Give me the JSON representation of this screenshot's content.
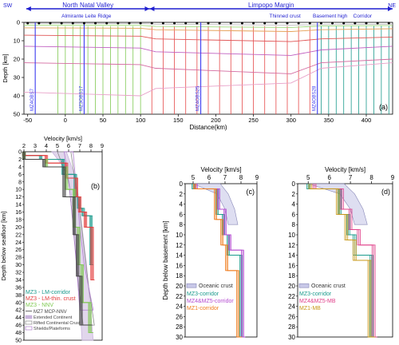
{
  "chart_data": [
    {
      "id": "a",
      "type": "line",
      "panel_label": "(a)",
      "regions": [
        {
          "label": "North Natal Valley",
          "from": -52,
          "to": 112,
          "color": "#1f1fd0"
        },
        {
          "label": "Limpopo Margin",
          "from": 112,
          "to": 435,
          "color": "#1f1fd0"
        }
      ],
      "end_labels": {
        "left": "SW",
        "right": "NE"
      },
      "features": [
        {
          "label": "Almirante Leite Ridge",
          "x": 28
        },
        {
          "label": "Thinned crust",
          "x": 292
        },
        {
          "label": "Basement high",
          "x": 352
        },
        {
          "label": "Corridor",
          "x": 395
        }
      ],
      "obs": [
        {
          "label": "MZ4OBS7",
          "x": -40
        },
        {
          "label": "MZ3OBS17",
          "x": 25
        },
        {
          "label": "MZ4OBS25",
          "x": 180
        },
        {
          "label": "MZ4OBS28",
          "x": 335
        }
      ],
      "xlabel": "Distance(km)",
      "ylabel": "Depth [km]",
      "xlim": [
        -55,
        435
      ],
      "ylim": [
        0,
        50
      ],
      "xticks": [
        -50,
        0,
        50,
        100,
        150,
        200,
        250,
        300,
        350,
        400
      ],
      "yticks": [
        0,
        10,
        20,
        30,
        40,
        50
      ],
      "profiles": [
        {
          "name": "green",
          "color": "#7ec850",
          "x": [
            -10,
            0,
            10,
            20,
            30,
            40,
            50,
            60,
            70,
            80,
            90,
            100
          ]
        },
        {
          "name": "red",
          "color": "#e64a4a",
          "x": [
            115,
            130,
            145,
            160,
            175,
            190,
            205,
            220,
            235,
            250,
            265,
            280,
            295,
            310,
            325
          ]
        },
        {
          "name": "teal",
          "color": "#1a9a8c",
          "x": [
            340,
            350,
            360,
            370,
            380,
            390,
            400,
            410,
            420,
            430
          ]
        }
      ],
      "layers": [
        {
          "color": "#bcbcbc",
          "x": [
            -55,
            100,
            120,
            300,
            340,
            435
          ],
          "y": [
            0.5,
            0.6,
            1.0,
            1.5,
            1.2,
            1.0
          ]
        },
        {
          "color": "#9edb7c",
          "x": [
            -55,
            100,
            120,
            300,
            340,
            435
          ],
          "y": [
            1.5,
            1.6,
            2.2,
            2.8,
            2.0,
            1.8
          ]
        },
        {
          "color": "#e6a25a",
          "x": [
            -55,
            100,
            120,
            300,
            340,
            435
          ],
          "y": [
            3.0,
            3.2,
            4.0,
            5.0,
            4.0,
            3.5
          ]
        },
        {
          "color": "#e05555",
          "x": [
            -55,
            100,
            120,
            300,
            340,
            435
          ],
          "y": [
            7.0,
            7.5,
            9.0,
            10.5,
            9.0,
            8.0
          ]
        },
        {
          "color": "#c060c0",
          "x": [
            -55,
            100,
            120,
            300,
            340,
            435
          ],
          "y": [
            13.0,
            14.0,
            16.0,
            18.0,
            15.0,
            13.0
          ]
        },
        {
          "color": "#d46aa0",
          "x": [
            -55,
            100,
            120,
            300,
            340,
            435
          ],
          "y": [
            22.0,
            23.0,
            25.0,
            28.0,
            22.0,
            20.0
          ]
        },
        {
          "color": "#e8a0c8",
          "x": [
            -55,
            100,
            120,
            300,
            340,
            435
          ],
          "y": [
            38.0,
            40.0,
            36.0,
            33.0,
            25.0,
            22.0
          ]
        }
      ],
      "stations": [
        -50,
        -35,
        -20,
        -5,
        10,
        25,
        40,
        55,
        70,
        85,
        100,
        115,
        130,
        145,
        160,
        175,
        190,
        205,
        220,
        235,
        250,
        265,
        280,
        295,
        310,
        325,
        340,
        355,
        370,
        385,
        400,
        415,
        430
      ]
    },
    {
      "id": "b",
      "type": "line",
      "panel_label": "(b)",
      "xlabel": "Velocity [km/s]",
      "ylabel": "Depth below seafloor [km]",
      "xlim": [
        2,
        9
      ],
      "ylim": [
        0,
        50
      ],
      "xticks": [
        2,
        3,
        4,
        5,
        6,
        7,
        8,
        9
      ],
      "yticks": [
        0,
        2,
        4,
        6,
        8,
        10,
        12,
        14,
        16,
        18,
        20,
        22,
        24,
        26,
        28,
        30,
        32,
        34,
        36,
        38,
        40,
        42,
        44,
        46,
        48,
        50
      ],
      "bands": [
        {
          "name": "Extended Continent",
          "color": "#c8b4dc",
          "fill": true,
          "v_lo": [
            4.5,
            5.8,
            6.2,
            6.5,
            6.8,
            7.0,
            7.2
          ],
          "v_hi": [
            5.8,
            6.4,
            6.8,
            7.2,
            7.6,
            7.9,
            8.2
          ],
          "d": [
            0,
            5,
            10,
            20,
            30,
            40,
            50
          ]
        },
        {
          "name": "Rifted Continental Crust",
          "color": "#8a8a8a",
          "fill": false,
          "v_lo": [
            5.0,
            6.0,
            6.3,
            6.6,
            6.9,
            7.3
          ],
          "v_hi": [
            6.2,
            6.6,
            7.0,
            7.4,
            7.8,
            8.3
          ],
          "d": [
            0,
            8,
            16,
            26,
            36,
            46
          ]
        },
        {
          "name": "Shields/Plateforms",
          "color": "#b07ed0",
          "fill": false,
          "v_lo": [
            5.6,
            6.1,
            6.4,
            6.7,
            7.0
          ],
          "v_hi": [
            6.4,
            6.7,
            7.0,
            7.4,
            8.2
          ],
          "d": [
            0,
            10,
            20,
            30,
            42
          ]
        }
      ],
      "series": [
        {
          "name": "MZ3 - LM-corridor",
          "color": "#1a9a8c",
          "v": [
            2.0,
            3.5,
            5.5,
            6.6,
            6.9,
            7.3,
            8.0,
            8.1
          ],
          "d": [
            0,
            1,
            2,
            6,
            12,
            15,
            17,
            30
          ]
        },
        {
          "name": "MZ3 - LM-thin. crust",
          "color": "#e33b3b",
          "v": [
            2.0,
            4.0,
            5.8,
            6.7,
            7.0,
            7.5,
            8.1,
            8.2
          ],
          "d": [
            0,
            1,
            3,
            7,
            12,
            16,
            20,
            34
          ]
        },
        {
          "name": "MZ3 - NNV",
          "color": "#7ec850",
          "v": [
            2.0,
            4.0,
            5.8,
            6.5,
            6.9,
            7.2,
            7.9,
            8.1
          ],
          "d": [
            0,
            2,
            4,
            10,
            20,
            30,
            40,
            48
          ]
        },
        {
          "name": "MZ7 MCP-NNV",
          "color": "#444444",
          "v": [
            2.0,
            3.8,
            5.6,
            6.5,
            6.8,
            7.1,
            8.0
          ],
          "d": [
            0,
            2,
            4,
            12,
            22,
            33,
            46
          ]
        }
      ]
    },
    {
      "id": "c",
      "type": "line",
      "panel_label": "(c)",
      "xlabel": "Velocity [km/s]",
      "ylabel": "Depth below basement [km]",
      "xlim": [
        4.5,
        9
      ],
      "ylim": [
        0,
        30
      ],
      "xticks": [
        5,
        6,
        7,
        8,
        9
      ],
      "yticks": [
        0,
        2,
        4,
        6,
        8,
        10,
        12,
        14,
        16,
        18,
        20,
        22,
        24,
        26,
        28,
        30
      ],
      "band": {
        "name": "Oceanic crust",
        "color": "#c8c8e8",
        "v_lo": [
          5.0,
          6.5,
          7.0,
          7.2
        ],
        "v_hi": [
          6.7,
          7.2,
          7.6,
          7.8
        ],
        "d": [
          0,
          2,
          5,
          8
        ]
      },
      "series": [
        {
          "name": "MZ3-corridor",
          "color": "#1a9a8c",
          "v": [
            5.0,
            6.5,
            6.9,
            7.2,
            8.0,
            8.1
          ],
          "d": [
            0,
            1,
            6,
            10,
            14,
            30
          ]
        },
        {
          "name": "MZ4&MZ5-corridor",
          "color": "#b44ad0",
          "v": [
            5.2,
            6.6,
            7.0,
            7.3,
            8.1,
            8.2
          ],
          "d": [
            0,
            1,
            5,
            10,
            13,
            30
          ]
        },
        {
          "name": "MZ1-corridor",
          "color": "#f07c1e",
          "v": [
            5.1,
            6.4,
            6.8,
            7.1,
            7.8,
            8.0
          ],
          "d": [
            0,
            1,
            7,
            12,
            17,
            30
          ]
        }
      ]
    },
    {
      "id": "d",
      "type": "line",
      "panel_label": "(d)",
      "xlabel": "Velocity [km/s]",
      "ylabel": "",
      "xlim": [
        4.5,
        9
      ],
      "ylim": [
        0,
        30
      ],
      "xticks": [
        5,
        6,
        7,
        8,
        9
      ],
      "yticks": [
        0,
        2,
        4,
        6,
        8,
        10,
        12,
        14,
        16,
        18,
        20,
        22,
        24,
        26,
        28,
        30
      ],
      "band": {
        "name": "Oceanic crust",
        "color": "#c8c8e8",
        "v_lo": [
          5.0,
          6.5,
          7.0,
          7.2
        ],
        "v_hi": [
          6.7,
          7.2,
          7.6,
          7.8
        ],
        "d": [
          0,
          2,
          5,
          8
        ]
      },
      "series": [
        {
          "name": "MZ3-corridor",
          "color": "#1a9a8c",
          "v": [
            5.0,
            6.5,
            6.9,
            7.2,
            8.0,
            8.1
          ],
          "d": [
            0,
            1,
            6,
            10,
            14,
            30
          ]
        },
        {
          "name": "MZ4&MZ5-MB",
          "color": "#e0408a",
          "v": [
            5.3,
            6.6,
            7.0,
            7.4,
            8.1,
            8.2
          ],
          "d": [
            0,
            1,
            5,
            9,
            12,
            30
          ]
        },
        {
          "name": "MZ1-MB",
          "color": "#c89818",
          "v": [
            5.1,
            6.4,
            6.8,
            7.2,
            7.9,
            8.1
          ],
          "d": [
            0,
            1,
            6,
            11,
            15,
            30
          ]
        }
      ]
    }
  ]
}
